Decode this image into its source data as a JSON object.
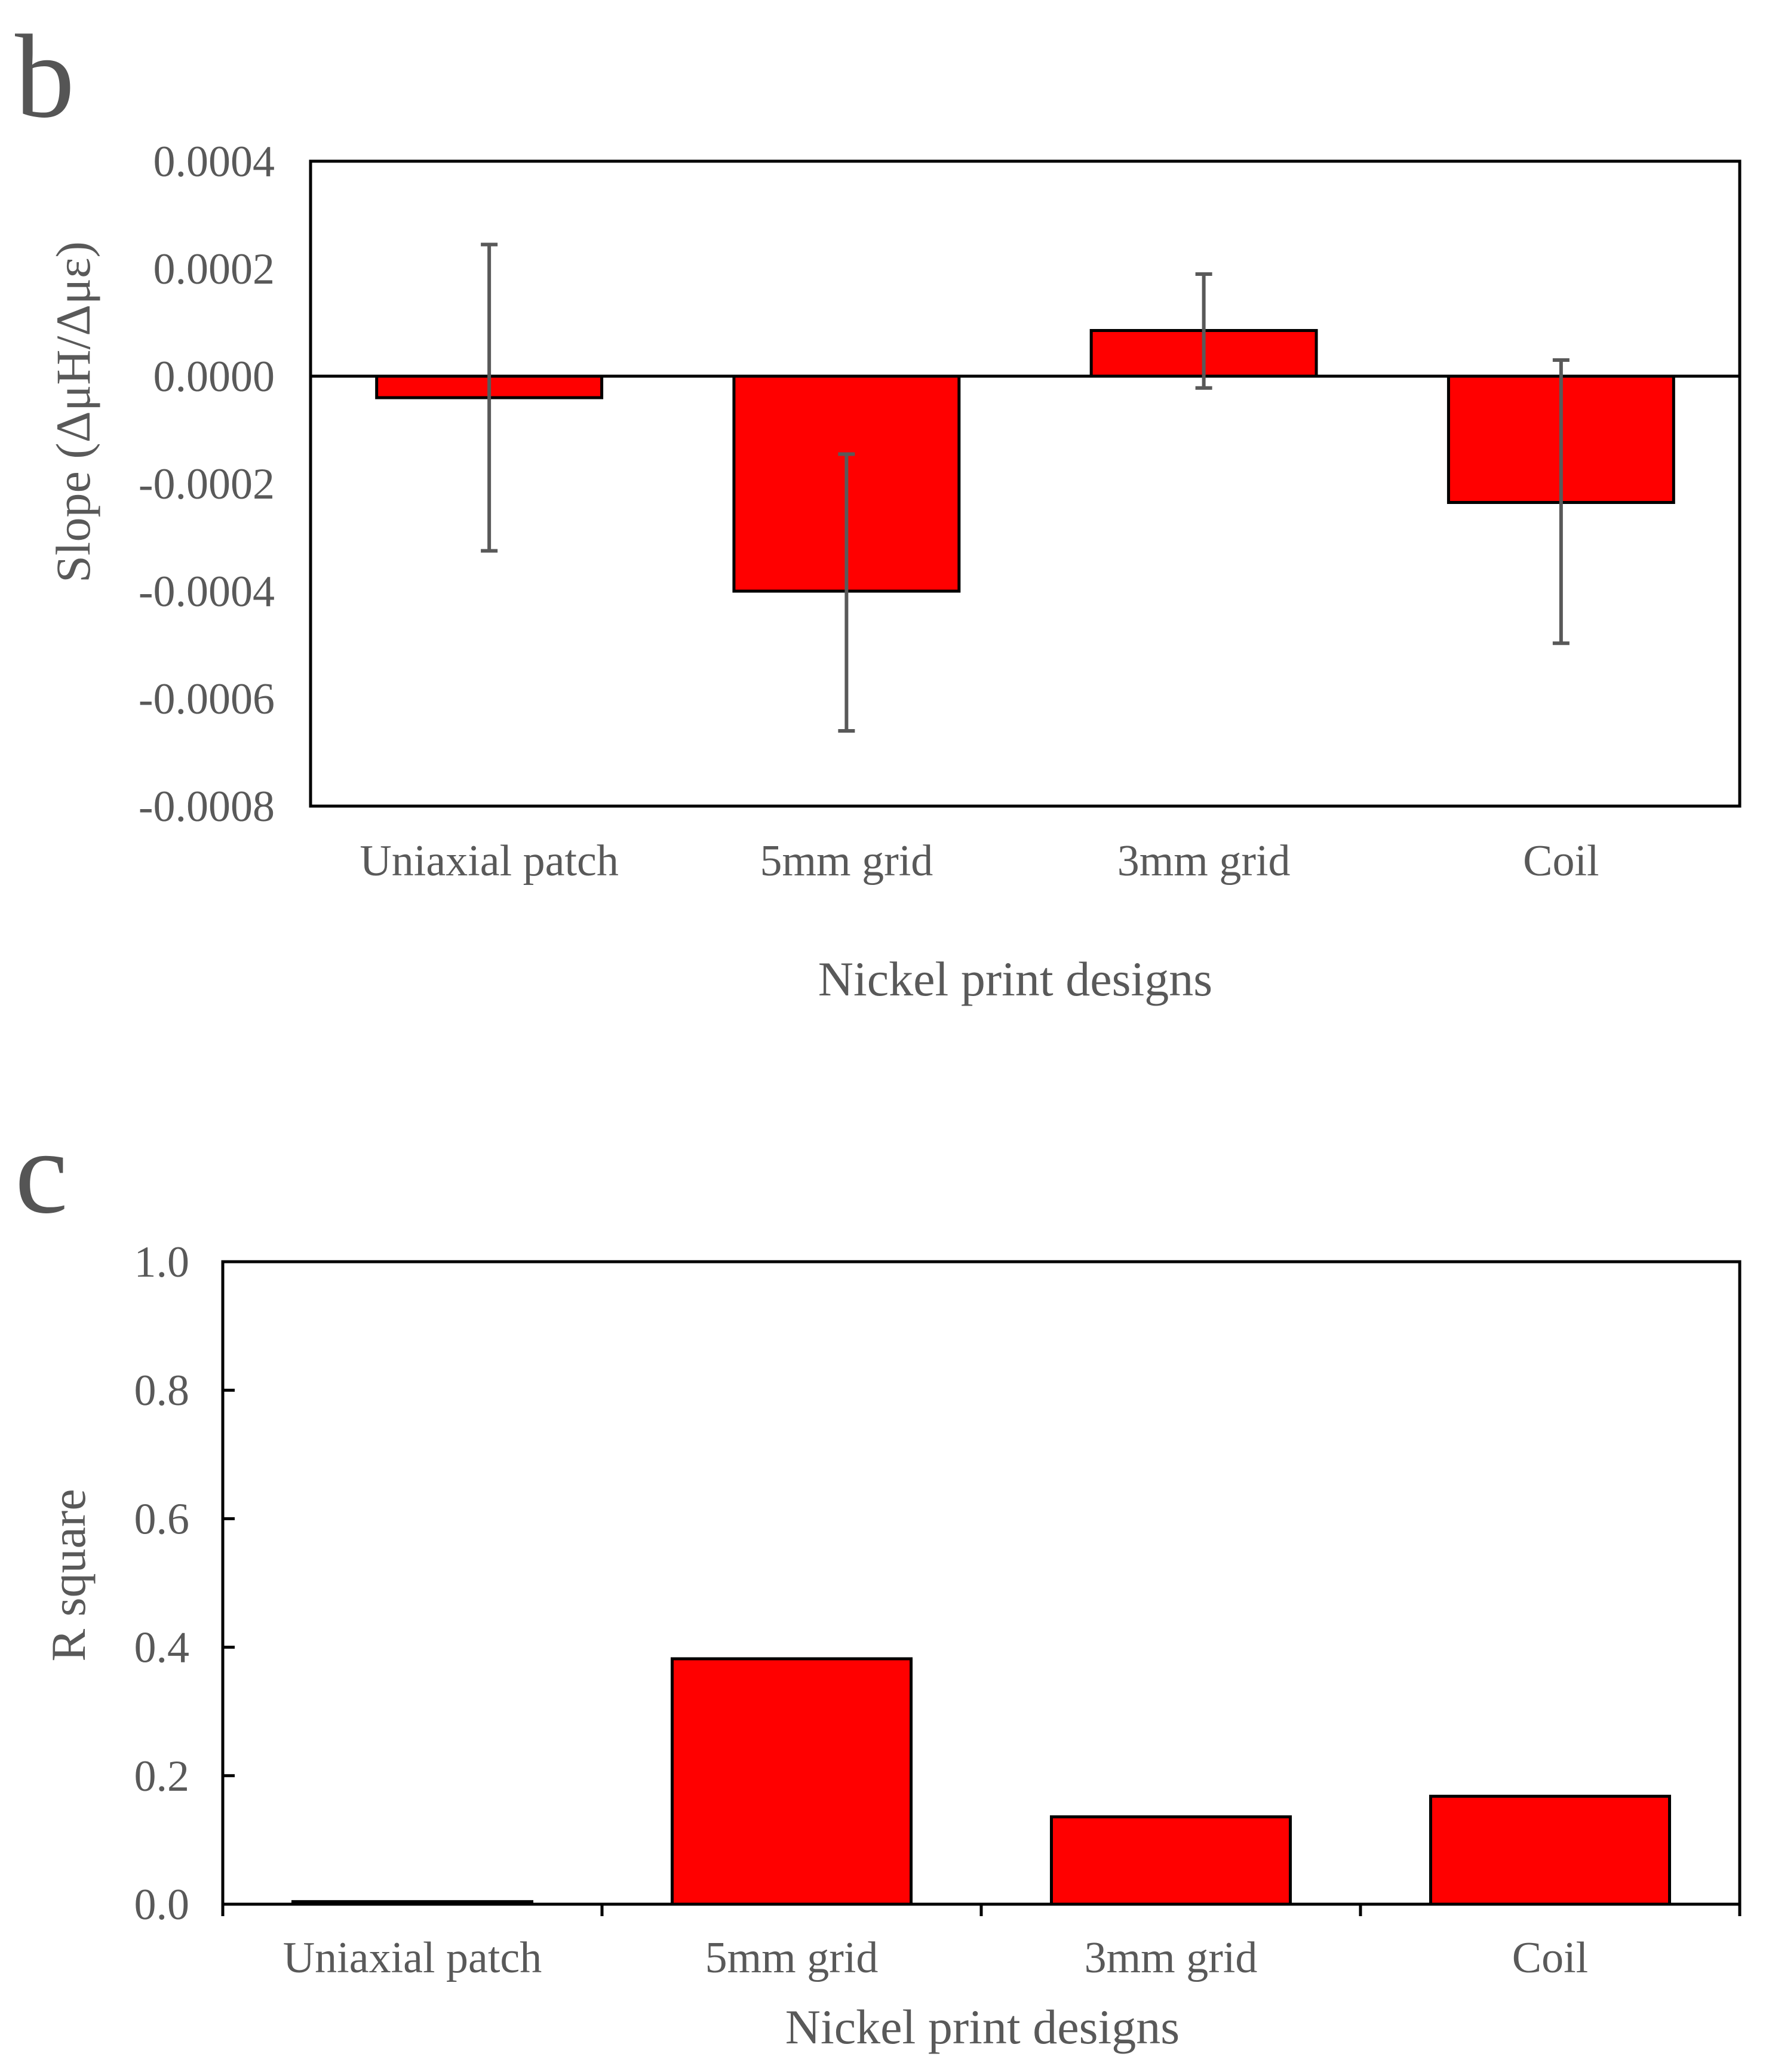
{
  "colors": {
    "bar_fill": "#ff0000",
    "bar_edge": "#000000",
    "error_bar": "#595959",
    "axis": "#000000",
    "text": "#595959"
  },
  "chart_data": [
    {
      "panel_label": "b",
      "type": "bar",
      "categories": [
        "Uniaxial patch",
        "5mm grid",
        "3mm grid",
        "Coil"
      ],
      "values": [
        -4e-05,
        -0.0004,
        8.5e-05,
        -0.000235
      ],
      "error_bars": [
        {
          "low": -0.000325,
          "high": 0.000245
        },
        {
          "low": -0.00066,
          "high": -0.000145
        },
        {
          "low": -2.2e-05,
          "high": 0.00019
        },
        {
          "low": -0.000497,
          "high": 3e-05
        }
      ],
      "xlabel": "Nickel print designs",
      "ylabel": "Slope (ΔμH/Δμε)",
      "ylim": [
        -0.0008,
        0.0004
      ],
      "yticks": [
        "0.0004",
        "0.0002",
        "0.0000",
        "-0.0002",
        "-0.0004",
        "-0.0006",
        "-0.0008"
      ],
      "ytick_values": [
        0.0004,
        0.0002,
        0,
        -0.0002,
        -0.0004,
        -0.0006,
        -0.0008
      ],
      "grid": false
    },
    {
      "panel_label": "c",
      "type": "bar",
      "categories": [
        "Uniaxial patch",
        "5mm grid",
        "3mm grid",
        "Coil"
      ],
      "values": [
        0.004,
        0.382,
        0.136,
        0.168
      ],
      "xlabel": "Nickel print designs",
      "ylabel": "R square",
      "ylim": [
        0,
        1.0
      ],
      "yticks": [
        "1.0",
        "0.8",
        "0.6",
        "0.4",
        "0.2",
        "0.0"
      ],
      "ytick_values": [
        1.0,
        0.8,
        0.6,
        0.4,
        0.2,
        0.0
      ],
      "grid": false
    }
  ]
}
